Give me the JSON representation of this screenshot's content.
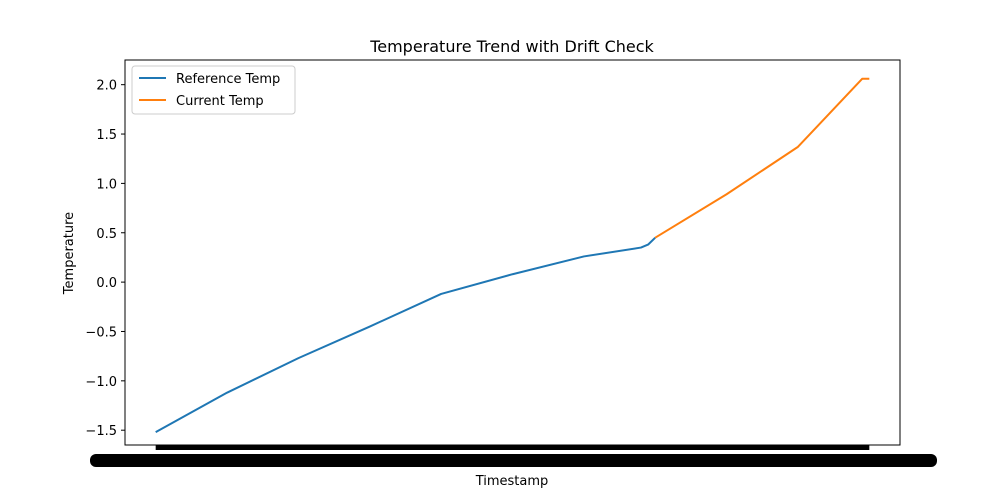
{
  "chart_data": {
    "type": "line",
    "title": "Temperature Trend with Drift Check",
    "xlabel": "Timestamp",
    "ylabel": "Temperature",
    "ylim": [
      -1.65,
      2.25
    ],
    "yticks": [
      -1.5,
      -1.0,
      -0.5,
      0.0,
      0.5,
      1.0,
      1.5,
      2.0
    ],
    "ytick_labels": [
      "−1.5",
      "−1.0",
      "−0.5",
      "0.0",
      "0.5",
      "1.0",
      "1.5",
      "2.0"
    ],
    "xlim": [
      -4.3,
      104.3
    ],
    "x_tick_count": 400,
    "grid": false,
    "legend": {
      "placement": "upper left"
    },
    "series": [
      {
        "name": "Reference Temp",
        "color": "#1f77b4",
        "x": [
          0,
          10,
          20,
          30,
          40,
          50,
          60,
          68,
          69,
          70
        ],
        "y": [
          -1.52,
          -1.12,
          -0.77,
          -0.45,
          -0.12,
          0.08,
          0.26,
          0.35,
          0.38,
          0.45
        ]
      },
      {
        "name": "Current Temp",
        "color": "#ff7f0e",
        "x": [
          70,
          80,
          90,
          99,
          100
        ],
        "y": [
          0.45,
          0.89,
          1.37,
          2.06,
          2.06
        ]
      }
    ]
  }
}
